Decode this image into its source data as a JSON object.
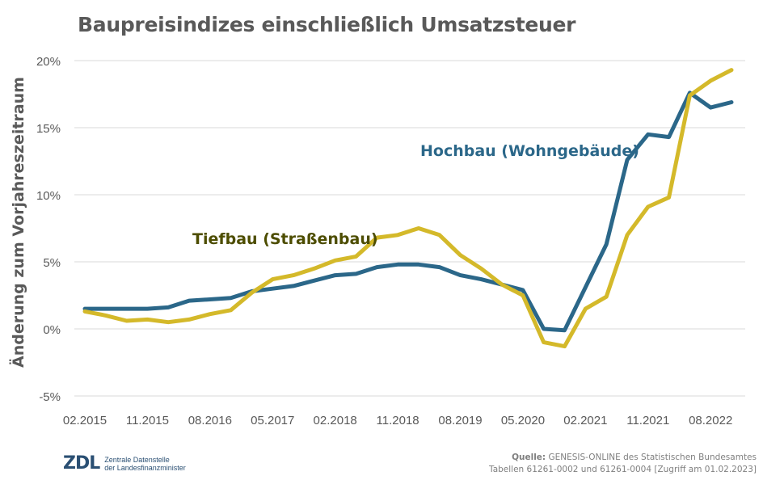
{
  "title": "Baupreisindizes einschließlich Umsatzsteuer",
  "logo": {
    "mark": "ZDL",
    "line1": "Zentrale Datenstelle",
    "line2": "der Landesfinanzminister"
  },
  "source": {
    "label": "Quelle:",
    "line1": "GENESIS-ONLINE des Statistischen Bundesamtes",
    "line2": "Tabellen 61261-0002 und 61261-0004 [Zugriff am 01.02.2023]"
  },
  "colors": {
    "hochbau": "#2b6789",
    "tiefbau": "#d4b92a",
    "hochbau_label": "#2b6789",
    "tiefbau_label": "#4d4d00",
    "grid": "#d9d9d9",
    "tick_text": "#595959"
  },
  "chart_data": {
    "type": "line",
    "title": "Baupreisindizes einschließlich Umsatzsteuer",
    "xlabel": "",
    "ylabel": "Änderung zum Vorjahreszeitraum",
    "ylim": [
      -5,
      20
    ],
    "yticks": [
      -5,
      0,
      5,
      10,
      15,
      20
    ],
    "ytick_labels": [
      "-5%",
      "0%",
      "5%",
      "10%",
      "15%",
      "20%"
    ],
    "grid": true,
    "x": [
      "02.2015",
      "05.2015",
      "08.2015",
      "11.2015",
      "02.2016",
      "05.2016",
      "08.2016",
      "11.2016",
      "02.2017",
      "05.2017",
      "08.2017",
      "11.2017",
      "02.2018",
      "05.2018",
      "08.2018",
      "11.2018",
      "02.2019",
      "05.2019",
      "08.2019",
      "11.2019",
      "02.2020",
      "05.2020",
      "08.2020",
      "11.2020",
      "02.2021",
      "05.2021",
      "08.2021",
      "11.2021",
      "02.2022",
      "05.2022",
      "08.2022",
      "11.2022"
    ],
    "xtick_labels": [
      "02.2015",
      "11.2015",
      "08.2016",
      "05.2017",
      "02.2018",
      "11.2018",
      "08.2019",
      "05.2020",
      "02.2021",
      "11.2021",
      "08.2022"
    ],
    "series": [
      {
        "name": "Hochbau (Wohngebäude)",
        "values": [
          1.5,
          1.5,
          1.5,
          1.5,
          1.6,
          2.1,
          2.2,
          2.3,
          2.8,
          3.0,
          3.2,
          3.6,
          4.0,
          4.1,
          4.6,
          4.8,
          4.8,
          4.6,
          4.0,
          3.7,
          3.3,
          2.9,
          0.0,
          -0.1,
          3.1,
          6.3,
          12.6,
          14.5,
          14.3,
          17.6,
          16.5,
          16.9
        ]
      },
      {
        "name": "Tiefbau (Straßenbau)",
        "values": [
          1.3,
          1.0,
          0.6,
          0.7,
          0.5,
          0.7,
          1.1,
          1.4,
          2.7,
          3.7,
          4.0,
          4.5,
          5.1,
          5.4,
          6.8,
          7.0,
          7.5,
          7.0,
          5.5,
          4.5,
          3.3,
          2.5,
          -1.0,
          -1.3,
          1.5,
          2.4,
          7.0,
          9.1,
          9.8,
          17.4,
          18.5,
          19.3
        ]
      }
    ]
  }
}
